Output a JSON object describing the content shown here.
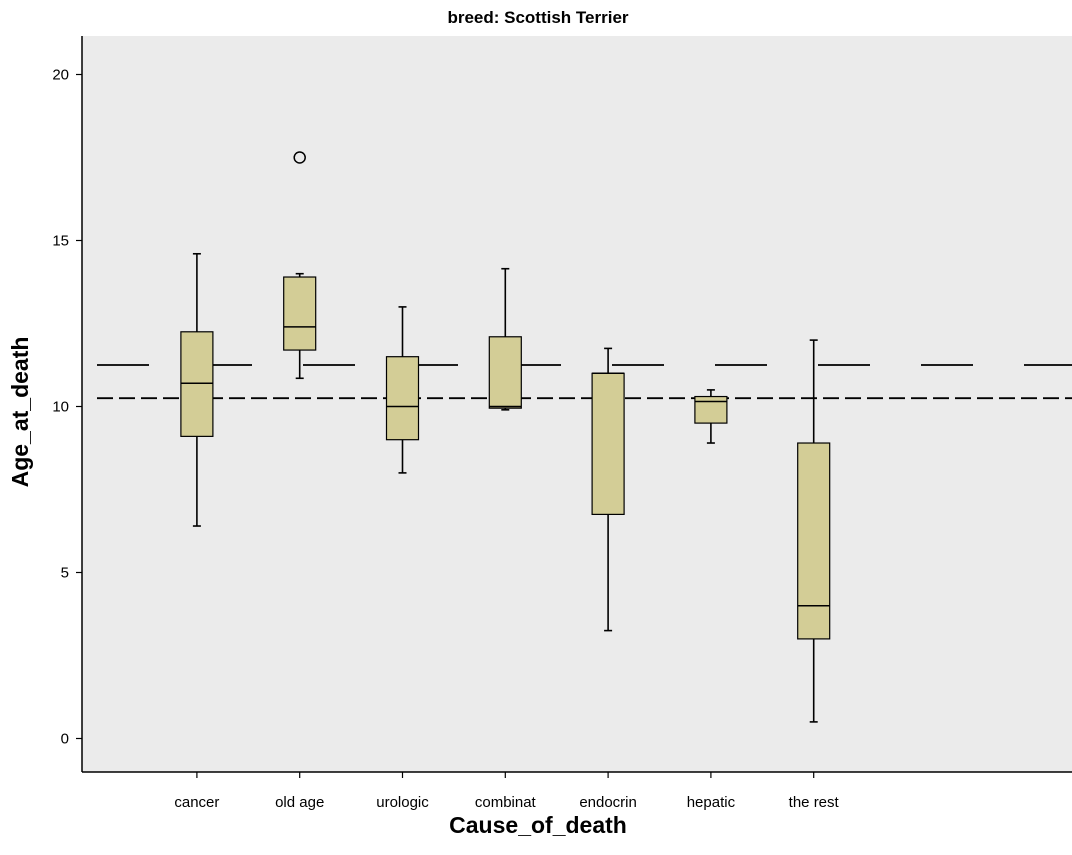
{
  "chart_data": {
    "type": "boxplot",
    "title": "breed: Scottish Terrier",
    "xlabel": "Cause_of_death",
    "ylabel": "Age_at_death",
    "ylim": [
      -1,
      21
    ],
    "yticks": [
      0,
      5,
      10,
      15,
      20
    ],
    "grid": false,
    "background": "#ebebeb",
    "box_color": "#d3cd96",
    "categories": [
      "cancer",
      "old age",
      "urologic",
      "combinat",
      "endocrin",
      "hepatic",
      "the rest"
    ],
    "boxes": [
      {
        "category": "cancer",
        "whisker_low": 6.4,
        "q1": 9.1,
        "median": 10.7,
        "q3": 12.25,
        "whisker_high": 14.6,
        "outliers": []
      },
      {
        "category": "old age",
        "whisker_low": 10.85,
        "q1": 11.7,
        "median": 12.4,
        "q3": 13.9,
        "whisker_high": 14.0,
        "outliers": [
          17.5
        ]
      },
      {
        "category": "urologic",
        "whisker_low": 8.0,
        "q1": 9.0,
        "median": 10.0,
        "q3": 11.5,
        "whisker_high": 13.0,
        "outliers": []
      },
      {
        "category": "combinat",
        "whisker_low": 9.9,
        "q1": 9.95,
        "median": 10.0,
        "q3": 12.1,
        "whisker_high": 14.15,
        "outliers": []
      },
      {
        "category": "endocrin",
        "whisker_low": 3.25,
        "q1": 6.75,
        "median": 11.0,
        "q3": 11.0,
        "whisker_high": 11.75,
        "outliers": []
      },
      {
        "category": "hepatic",
        "whisker_low": 8.9,
        "q1": 9.5,
        "median": 10.15,
        "q3": 10.3,
        "whisker_high": 10.5,
        "outliers": []
      },
      {
        "category": "the rest",
        "whisker_low": 0.5,
        "q1": 3.0,
        "median": 4.0,
        "q3": 8.9,
        "whisker_high": 12.0,
        "outliers": []
      }
    ],
    "reference_lines": [
      {
        "y": 11.25,
        "style": "long-dash"
      },
      {
        "y": 10.25,
        "style": "short-dash"
      }
    ]
  }
}
